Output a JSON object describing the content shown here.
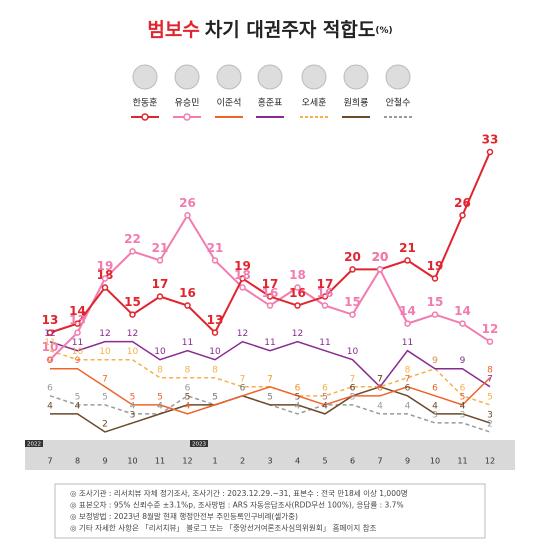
{
  "chart_data": {
    "type": "line",
    "title_highlight": "범보수",
    "title": "차기 대권주자 적합도",
    "title_unit": "(%)",
    "categories": [
      "7",
      "8",
      "9",
      "10",
      "11",
      "12",
      "1",
      "2",
      "3",
      "4",
      "5",
      "6",
      "7",
      "9",
      "10",
      "11",
      "12"
    ],
    "year_labels": [
      "2022",
      "2023"
    ],
    "ylim": [
      0,
      35
    ],
    "series": [
      {
        "name": "한동훈",
        "color": "#e0252e",
        "dash": false,
        "markers": true,
        "values": [
          13,
          14,
          18,
          15,
          17,
          16,
          13,
          19,
          17,
          16,
          17,
          20,
          20,
          21,
          19,
          26,
          33
        ]
      },
      {
        "name": "유승민",
        "color": "#f27bb0",
        "dash": false,
        "markers": true,
        "values": [
          10,
          13,
          19,
          22,
          21,
          26,
          21,
          18,
          16,
          18,
          16,
          15,
          20,
          14,
          15,
          14,
          12
        ]
      },
      {
        "name": "이준석",
        "color": "#f0642a",
        "dash": false,
        "markers": false,
        "values": [
          9,
          9,
          7,
          5,
          5,
          4,
          5,
          6,
          7,
          6,
          5,
          6,
          6,
          7,
          6,
          5,
          8
        ]
      },
      {
        "name": "홍준표",
        "color": "#8a2a90",
        "dash": false,
        "markers": false,
        "values": [
          12,
          11,
          12,
          12,
          10,
          11,
          10,
          12,
          11,
          12,
          11,
          10,
          7,
          11,
          9,
          9,
          7
        ]
      },
      {
        "name": "오세훈",
        "color": "#f5b04a",
        "dash": true,
        "markers": false,
        "values": [
          11,
          10,
          10,
          10,
          8,
          8,
          8,
          7,
          7,
          6,
          6,
          7,
          7,
          8,
          9,
          6,
          5
        ]
      },
      {
        "name": "원희룡",
        "color": "#6b4a2a",
        "dash": false,
        "markers": false,
        "values": [
          4,
          4,
          2,
          3,
          4,
          5,
          5,
          6,
          5,
          5,
          4,
          6,
          7,
          6,
          4,
          4,
          3
        ]
      },
      {
        "name": "안철수",
        "color": "#9a9a9a",
        "dash": true,
        "markers": false,
        "values": [
          6,
          5,
          5,
          4,
          4,
          6,
          5,
          6,
          5,
          4,
          5,
          5,
          4,
          4,
          3,
          3,
          2
        ]
      }
    ]
  },
  "notes": [
    "◎ 조사기관 : 리서치뷰 자체 정기조사, 조사기간 : 2023.12.29.~31, 표본수 : 전국 만18세 이상 1,000명",
    "◎ 표본오차 : 95% 신뢰수준 ±3.1%p, 조사방법 : ARS 자동응답조사(RDD무선 100%), 응답률 : 3.7%",
    "◎ 보정방법 : 2023년 8월말 현재 행정안전부 주민등록인구비례(셀가중)",
    "◎ 기타 자세한 사항은 「리서치뷰」 블로그 또는 「중앙선거여론조사심의위원회」 홈페이지 참조"
  ]
}
